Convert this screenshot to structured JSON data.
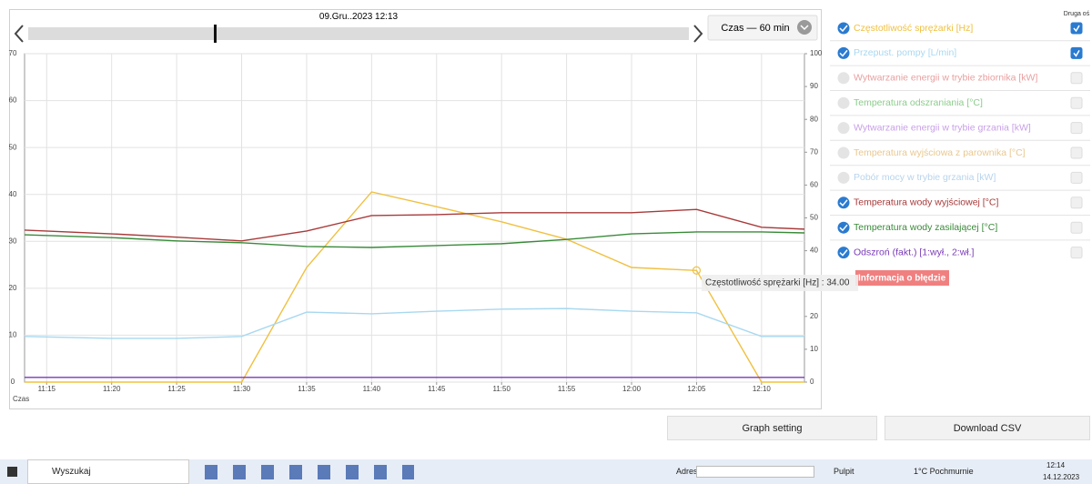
{
  "header": {
    "date": "09.Gru..2023 12:13",
    "time_range": "Czas — 60 min"
  },
  "chart_data": {
    "type": "line",
    "x_label": "Czas",
    "x": [
      673.3,
      680,
      685,
      690,
      695,
      700,
      705,
      710,
      715,
      720,
      725,
      730,
      733.3
    ],
    "xlim": [
      673.3,
      733.3
    ],
    "xticks": [
      {
        "value": 675,
        "label": "11:15"
      },
      {
        "value": 680,
        "label": "11:20"
      },
      {
        "value": 685,
        "label": "11:25"
      },
      {
        "value": 690,
        "label": "11:30"
      },
      {
        "value": 695,
        "label": "11:35"
      },
      {
        "value": 700,
        "label": "11:40"
      },
      {
        "value": 705,
        "label": "11:45"
      },
      {
        "value": 710,
        "label": "11:50"
      },
      {
        "value": 715,
        "label": "11:55"
      },
      {
        "value": 720,
        "label": "12:00"
      },
      {
        "value": 725,
        "label": "12:05"
      },
      {
        "value": 730,
        "label": "12:10"
      }
    ],
    "ylim": [
      0,
      70
    ],
    "yticks": [
      0,
      10,
      20,
      30,
      40,
      50,
      60,
      70
    ],
    "y2lim": [
      0,
      100
    ],
    "y2ticks": [
      0,
      10,
      20,
      30,
      40,
      50,
      60,
      70,
      80,
      90,
      100
    ],
    "grid": true,
    "second_axis_header": "Druga oś",
    "series": [
      {
        "name": "Częstotliwość sprężarki [Hz]",
        "color": "#f0c040",
        "visible": true,
        "axis": "y2",
        "values": [
          0,
          0,
          0,
          0,
          34.9,
          57.9,
          53.4,
          48.8,
          43.5,
          34.9,
          34,
          0,
          0
        ]
      },
      {
        "name": "Przepust. pompy [L/min]",
        "color": "#a8d8f0",
        "visible": true,
        "axis": "y2",
        "values": [
          13.9,
          13.3,
          13.3,
          13.9,
          21.3,
          20.8,
          21.6,
          22.2,
          22.4,
          21.6,
          21.1,
          13.9,
          13.9
        ]
      },
      {
        "name": "Wytwarzanie energii w trybie zbiornika [kW]",
        "color": "#e8a0a0",
        "visible": false,
        "axis": "y"
      },
      {
        "name": "Temperatura odszraniania [°C]",
        "color": "#8ccc8c",
        "visible": false,
        "axis": "y"
      },
      {
        "name": "Wytwarzanie energii w trybie grzania [kW]",
        "color": "#c8a0e8",
        "visible": false,
        "axis": "y"
      },
      {
        "name": "Temperatura wyjściowa z parownika [°C]",
        "color": "#e8c890",
        "visible": false,
        "axis": "y"
      },
      {
        "name": "Pobór mocy w trybie grzania [kW]",
        "color": "#b8d4ec",
        "visible": false,
        "axis": "y"
      },
      {
        "name": "Temperatura wody wyjściowej [°C]",
        "color": "#a83a3a",
        "visible": true,
        "axis": "y",
        "values": [
          32.4,
          31.6,
          30.9,
          30.1,
          32.2,
          35.5,
          35.7,
          36.1,
          36.1,
          36.1,
          36.8,
          33.0,
          32.6
        ]
      },
      {
        "name": "Temperatura wody zasilającej [°C]",
        "color": "#3a8a3a",
        "visible": true,
        "axis": "y",
        "values": [
          31.4,
          30.8,
          30.1,
          29.7,
          28.9,
          28.7,
          29.1,
          29.5,
          30.4,
          31.6,
          32.0,
          32.0,
          31.8
        ]
      },
      {
        "name": "Odszroń (fakt.) [1:wył., 2:wł.]",
        "color": "#7a3ab8",
        "visible": true,
        "axis": "y",
        "values": [
          1,
          1,
          1,
          1,
          1,
          1,
          1,
          1,
          1,
          1,
          1,
          1,
          1
        ]
      }
    ],
    "tooltip": "Częstotliwość sprężarki [Hz] : 34.00",
    "error_badge": "Informacja o błędzie"
  },
  "buttons": [
    "Graph setting",
    "Download CSV"
  ],
  "taskbar": {
    "search": "Wyszukaj",
    "address_label": "Adres",
    "desktop": "Pulpit",
    "weather": "1°C Pochmurnie",
    "time": "12:14",
    "date": "14.12.2023"
  }
}
